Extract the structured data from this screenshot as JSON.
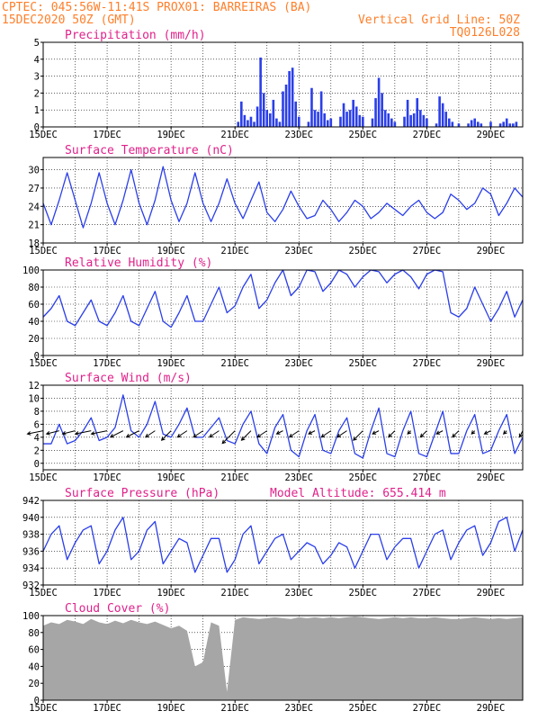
{
  "header": {
    "line1": "CPTEC:   045:56W-11:41S   PROX01: BARREIRAS (BA)",
    "line2": "15DEC2020 50Z (GMT)",
    "grid_note": "Vertical Grid Line: 50Z",
    "code": "TQ0126L028"
  },
  "x_axis": {
    "tick_labels": [
      "15DEC",
      "17DEC",
      "19DEC",
      "21DEC",
      "23DEC",
      "25DEC",
      "27DEC",
      "29DEC"
    ],
    "tick_days": [
      0,
      2,
      4,
      6,
      8,
      10,
      12,
      14
    ],
    "range_days": [
      0,
      15
    ]
  },
  "colors": {
    "line": "#2b3fe8",
    "bar": "#2b3fe8",
    "cloud": "#a6a6a6",
    "title": "#e0218a",
    "header": "#ff7f2a"
  },
  "chart_data": [
    {
      "id": "precipitation",
      "type": "bar",
      "title": "Precipitation (mm/h)",
      "ylim": [
        0,
        5
      ],
      "yticks": [
        0,
        1,
        2,
        3,
        4,
        5
      ],
      "x_days": [
        6.1,
        6.2,
        6.3,
        6.4,
        6.5,
        6.6,
        6.7,
        6.8,
        6.9,
        7.0,
        7.1,
        7.2,
        7.3,
        7.4,
        7.5,
        7.6,
        7.7,
        7.8,
        7.9,
        8.0,
        8.3,
        8.4,
        8.5,
        8.6,
        8.7,
        8.8,
        8.9,
        9.0,
        9.3,
        9.4,
        9.5,
        9.6,
        9.7,
        9.8,
        9.9,
        10.0,
        10.3,
        10.4,
        10.5,
        10.6,
        10.7,
        10.8,
        10.9,
        11.0,
        11.3,
        11.4,
        11.5,
        11.6,
        11.7,
        11.8,
        11.9,
        12.0,
        12.3,
        12.4,
        12.5,
        12.6,
        12.7,
        12.8,
        13.0,
        13.3,
        13.4,
        13.5,
        13.6,
        13.7,
        14.0,
        14.3,
        14.4,
        14.5,
        14.6,
        14.7,
        14.8
      ],
      "values": [
        0.3,
        1.5,
        0.7,
        0.4,
        0.6,
        0.3,
        1.2,
        4.1,
        2.0,
        1.0,
        0.8,
        1.6,
        0.5,
        0.3,
        2.1,
        2.5,
        3.3,
        3.5,
        1.5,
        0.6,
        0.3,
        2.3,
        1.0,
        0.9,
        2.1,
        0.8,
        0.4,
        0.5,
        0.6,
        1.4,
        0.9,
        1.0,
        1.6,
        1.2,
        0.7,
        0.6,
        0.5,
        1.7,
        2.9,
        2.0,
        1.0,
        0.8,
        0.5,
        0.3,
        0.6,
        1.6,
        0.7,
        0.8,
        1.7,
        1.0,
        0.7,
        0.5,
        0.2,
        1.8,
        1.4,
        0.9,
        0.5,
        0.3,
        0.2,
        0.2,
        0.4,
        0.5,
        0.3,
        0.2,
        0.3,
        0.2,
        0.3,
        0.5,
        0.2,
        0.2,
        0.3
      ]
    },
    {
      "id": "temperature",
      "type": "line",
      "title": "Surface Temperature (nC)",
      "ylim": [
        18,
        32
      ],
      "yticks": [
        18,
        21,
        24,
        27,
        30
      ],
      "x_days": [
        0,
        0.25,
        0.5,
        0.75,
        1,
        1.25,
        1.5,
        1.75,
        2,
        2.25,
        2.5,
        2.75,
        3,
        3.25,
        3.5,
        3.75,
        4,
        4.25,
        4.5,
        4.75,
        5,
        5.25,
        5.5,
        5.75,
        6,
        6.25,
        6.5,
        6.75,
        7,
        7.25,
        7.5,
        7.75,
        8,
        8.25,
        8.5,
        8.75,
        9,
        9.25,
        9.5,
        9.75,
        10,
        10.25,
        10.5,
        10.75,
        11,
        11.25,
        11.5,
        11.75,
        12,
        12.25,
        12.5,
        12.75,
        13,
        13.25,
        13.5,
        13.75,
        14,
        14.25,
        14.5,
        14.75,
        15
      ],
      "values": [
        24.5,
        21,
        25,
        29.5,
        25,
        20.5,
        24.5,
        29.5,
        24.5,
        21,
        25,
        30,
        24.5,
        21,
        25,
        30.5,
        25,
        21.5,
        24.5,
        29.5,
        24.5,
        21.5,
        24.5,
        28.5,
        24.5,
        22,
        25,
        28,
        23,
        21.5,
        23.5,
        26.5,
        24,
        22,
        22.5,
        25,
        23.5,
        21.5,
        23,
        25,
        24,
        22,
        23,
        24.5,
        23.5,
        22.5,
        24,
        25,
        23,
        22,
        23,
        26,
        25,
        23.5,
        24.5,
        27,
        26,
        22.5,
        24.5,
        27,
        25.5
      ]
    },
    {
      "id": "humidity",
      "type": "line",
      "title": "Relative Humidity (%)",
      "ylim": [
        0,
        100
      ],
      "yticks": [
        0,
        20,
        40,
        60,
        80,
        100
      ],
      "x_days": [
        0,
        0.25,
        0.5,
        0.75,
        1,
        1.25,
        1.5,
        1.75,
        2,
        2.25,
        2.5,
        2.75,
        3,
        3.25,
        3.5,
        3.75,
        4,
        4.25,
        4.5,
        4.75,
        5,
        5.25,
        5.5,
        5.75,
        6,
        6.25,
        6.5,
        6.75,
        7,
        7.25,
        7.5,
        7.75,
        8,
        8.25,
        8.5,
        8.75,
        9,
        9.25,
        9.5,
        9.75,
        10,
        10.25,
        10.5,
        10.75,
        11,
        11.25,
        11.5,
        11.75,
        12,
        12.25,
        12.5,
        12.75,
        13,
        13.25,
        13.5,
        13.75,
        14,
        14.25,
        14.5,
        14.75,
        15
      ],
      "values": [
        45,
        55,
        70,
        40,
        35,
        50,
        65,
        40,
        35,
        50,
        70,
        40,
        35,
        55,
        75,
        40,
        33,
        50,
        70,
        40,
        40,
        60,
        80,
        50,
        58,
        80,
        95,
        55,
        65,
        85,
        100,
        70,
        80,
        100,
        98,
        75,
        85,
        100,
        95,
        80,
        92,
        100,
        98,
        85,
        95,
        100,
        92,
        78,
        95,
        100,
        98,
        50,
        45,
        55,
        80,
        60,
        40,
        55,
        75,
        45,
        65
      ]
    },
    {
      "id": "wind",
      "type": "line",
      "title": "Surface Wind (m/s)",
      "ylim": [
        -1,
        12
      ],
      "yticks": [
        0,
        2,
        4,
        6,
        8,
        10,
        12
      ],
      "x_days": [
        0,
        0.25,
        0.5,
        0.75,
        1,
        1.25,
        1.5,
        1.75,
        2,
        2.25,
        2.5,
        2.75,
        3,
        3.25,
        3.5,
        3.75,
        4,
        4.25,
        4.5,
        4.75,
        5,
        5.25,
        5.5,
        5.75,
        6,
        6.25,
        6.5,
        6.75,
        7,
        7.25,
        7.5,
        7.75,
        8,
        8.25,
        8.5,
        8.75,
        9,
        9.25,
        9.5,
        9.75,
        10,
        10.25,
        10.5,
        10.75,
        11,
        11.25,
        11.5,
        11.75,
        12,
        12.25,
        12.5,
        12.75,
        13,
        13.25,
        13.5,
        13.75,
        14,
        14.25,
        14.5,
        14.75,
        15
      ],
      "values": [
        3,
        3,
        6,
        3,
        3.5,
        5,
        7,
        3.5,
        4,
        5.5,
        10.5,
        5,
        4,
        6,
        9.5,
        4.5,
        4,
        6,
        8.5,
        4,
        4,
        5.5,
        7,
        3.5,
        3,
        6,
        8,
        3,
        1.5,
        5.5,
        7.5,
        2,
        1,
        5,
        7.5,
        2,
        1.5,
        5,
        7,
        1.5,
        0.8,
        5,
        8.5,
        1.5,
        1,
        5,
        8,
        1.5,
        1,
        4.5,
        8,
        1.5,
        1.5,
        5,
        7.5,
        1.5,
        2,
        5,
        7.5,
        1.5,
        4
      ],
      "barbs": {
        "x_days": [
          0,
          0.5,
          1,
          1.5,
          2,
          2.5,
          3,
          3.5,
          4,
          4.5,
          5,
          5.5,
          6,
          6.5,
          7,
          7.5,
          8,
          8.5,
          9,
          9.5,
          10,
          10.5,
          11,
          11.5,
          12,
          12.5,
          13,
          13.5,
          14,
          14.5,
          15
        ],
        "u": [
          -5,
          -4,
          -4,
          -5,
          -5,
          -4,
          -4,
          -3,
          -3,
          -3,
          -3,
          -3,
          -4,
          -3,
          -3,
          -2,
          -3,
          -2,
          -3,
          -3,
          -3,
          -2,
          -2,
          -1,
          -2,
          -2,
          -2,
          -1,
          -2,
          -1,
          -1
        ],
        "v": [
          -1,
          -1,
          -1,
          -1,
          -1,
          -2,
          -2,
          -2,
          -3,
          -2,
          -2,
          -2,
          -4,
          -3,
          -2,
          -1,
          -2,
          -1,
          -2,
          -2,
          -3,
          -1,
          -2,
          -1,
          -2,
          -1,
          -2,
          -1,
          -1,
          -1,
          -2
        ]
      }
    },
    {
      "id": "pressure",
      "type": "line",
      "title": "Surface Pressure (hPa)",
      "annotation": "Model Altitude: 655.414  m",
      "ylim": [
        932,
        942
      ],
      "yticks": [
        932,
        934,
        936,
        938,
        940,
        942
      ],
      "x_days": [
        0,
        0.25,
        0.5,
        0.75,
        1,
        1.25,
        1.5,
        1.75,
        2,
        2.25,
        2.5,
        2.75,
        3,
        3.25,
        3.5,
        3.75,
        4,
        4.25,
        4.5,
        4.75,
        5,
        5.25,
        5.5,
        5.75,
        6,
        6.25,
        6.5,
        6.75,
        7,
        7.25,
        7.5,
        7.75,
        8,
        8.25,
        8.5,
        8.75,
        9,
        9.25,
        9.5,
        9.75,
        10,
        10.25,
        10.5,
        10.75,
        11,
        11.25,
        11.5,
        11.75,
        12,
        12.25,
        12.5,
        12.75,
        13,
        13.25,
        13.5,
        13.75,
        14,
        14.25,
        14.5,
        14.75,
        15
      ],
      "values": [
        936,
        938,
        939,
        935,
        937,
        938.5,
        939,
        934.5,
        936,
        938.5,
        940,
        935,
        936,
        938.5,
        939.5,
        934.5,
        936,
        937.5,
        937,
        933.5,
        935.5,
        937.5,
        937.5,
        933.5,
        935,
        938,
        939,
        934.5,
        936,
        937.5,
        938,
        935,
        936,
        937,
        936.5,
        934.5,
        935.5,
        937,
        936.5,
        934,
        936,
        938,
        938,
        935,
        936.5,
        937.5,
        937.5,
        934,
        936,
        938,
        938.5,
        935,
        937,
        938.5,
        939,
        935.5,
        937,
        939.5,
        940,
        936,
        938.5
      ]
    },
    {
      "id": "cloud",
      "type": "area",
      "title": "Cloud Cover (%)",
      "ylim": [
        0,
        100
      ],
      "yticks": [
        0,
        20,
        40,
        60,
        80,
        100
      ],
      "x_days": [
        0,
        0.25,
        0.5,
        0.75,
        1,
        1.25,
        1.5,
        1.75,
        2,
        2.25,
        2.5,
        2.75,
        3,
        3.25,
        3.5,
        3.75,
        4,
        4.25,
        4.5,
        4.75,
        5,
        5.25,
        5.5,
        5.75,
        6,
        6.25,
        6.5,
        6.75,
        7,
        7.25,
        7.5,
        7.75,
        8,
        8.25,
        8.5,
        8.75,
        9,
        9.25,
        9.5,
        9.75,
        10,
        10.25,
        10.5,
        10.75,
        11,
        11.25,
        11.5,
        11.75,
        12,
        12.25,
        12.5,
        12.75,
        13,
        13.25,
        13.5,
        13.75,
        14,
        14.25,
        14.5,
        14.75,
        15
      ],
      "values": [
        88,
        92,
        90,
        95,
        93,
        90,
        96,
        92,
        90,
        94,
        91,
        95,
        92,
        90,
        93,
        89,
        85,
        88,
        82,
        40,
        45,
        92,
        88,
        10,
        95,
        98,
        97,
        96,
        97,
        98,
        97,
        96,
        98,
        97,
        98,
        97,
        98,
        97,
        98,
        99,
        98,
        97,
        96,
        97,
        98,
        97,
        98,
        97,
        97,
        98,
        97,
        96,
        96,
        97,
        98,
        97,
        96,
        97,
        96,
        97,
        98
      ]
    }
  ]
}
